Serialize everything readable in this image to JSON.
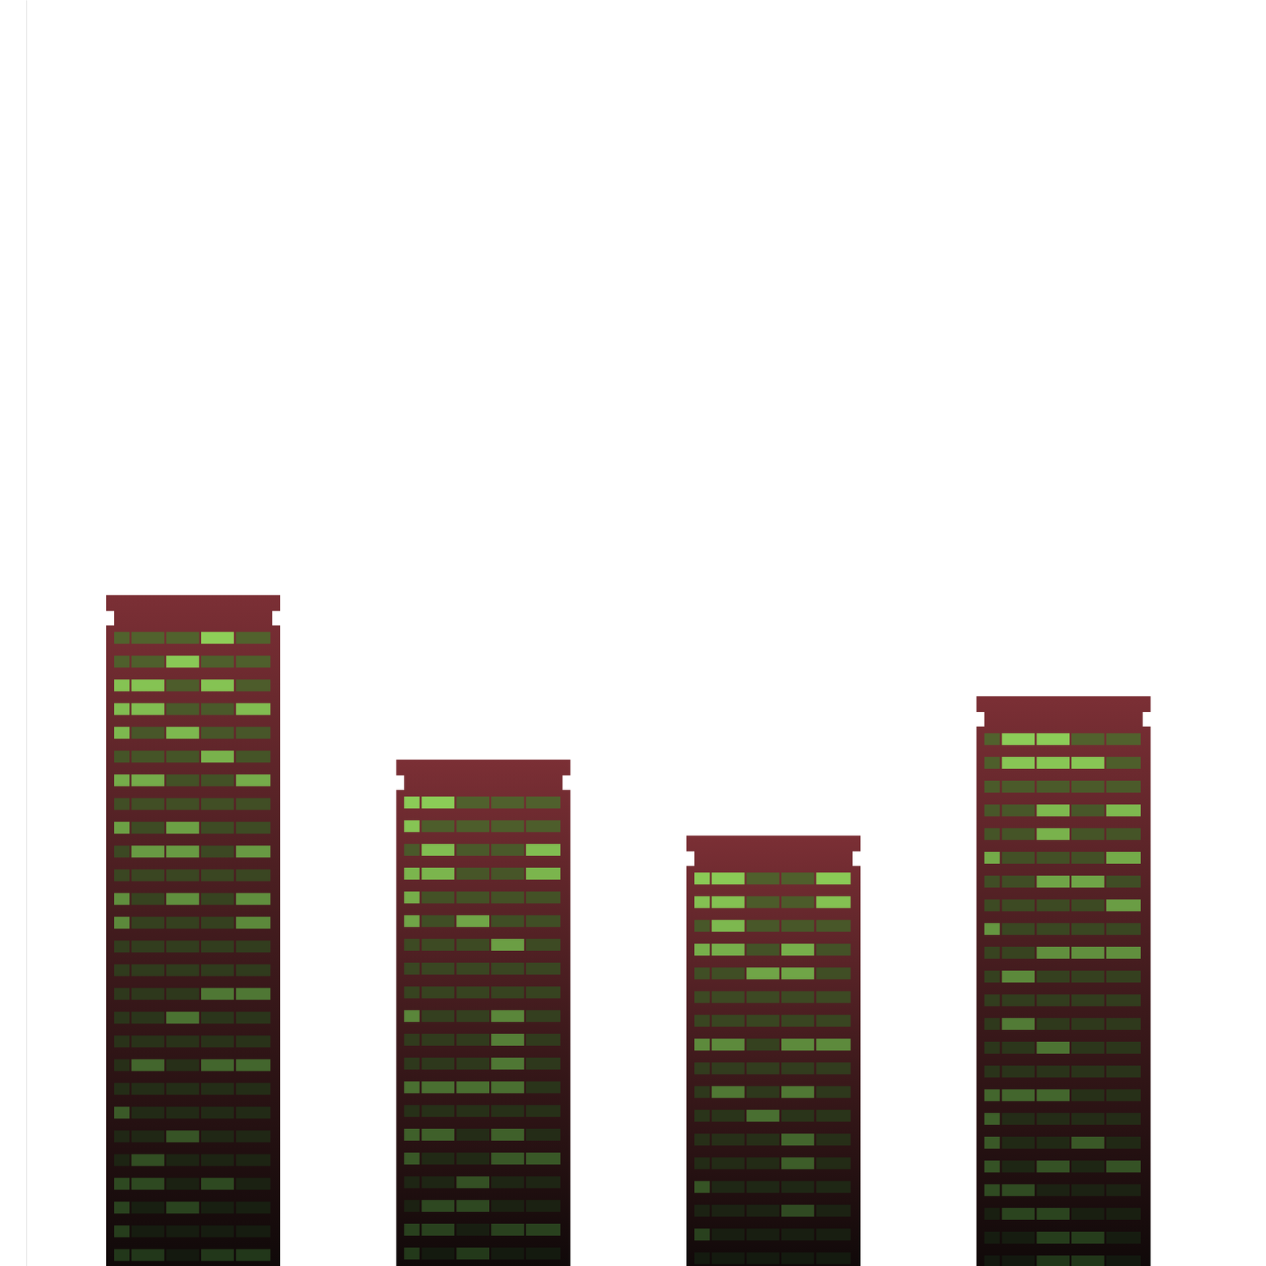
{
  "chart_data": {
    "type": "bar",
    "categories": [
      null,
      null,
      null,
      null
    ],
    "values": [
      53,
      40,
      34,
      45
    ],
    "color": "#7b2f35",
    "ylim": [
      0,
      100
    ],
    "tick_labels": false
  }
}
